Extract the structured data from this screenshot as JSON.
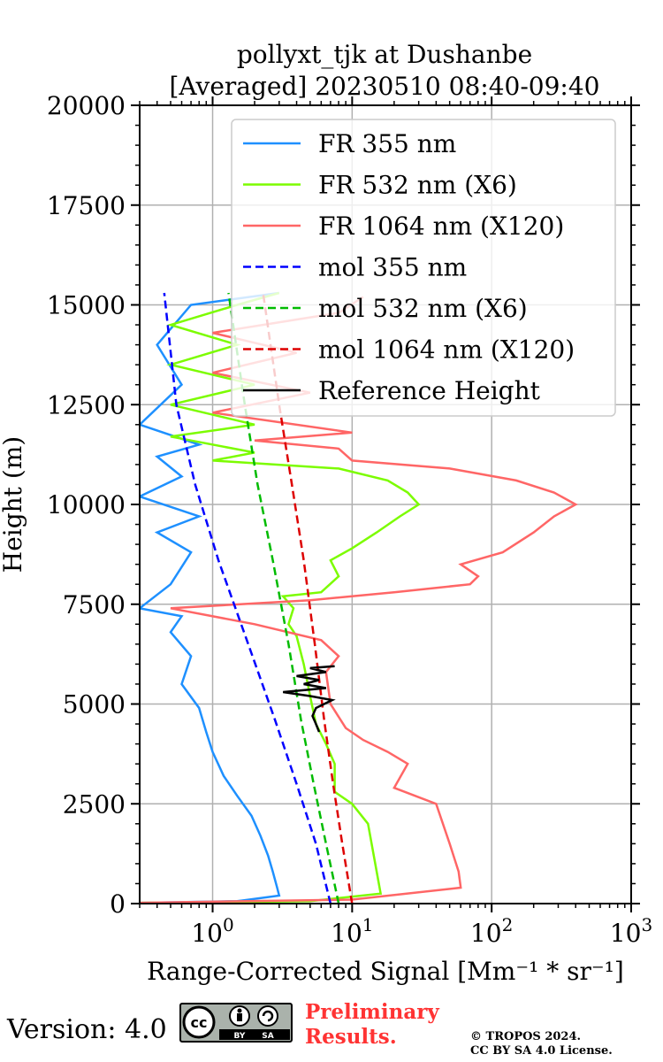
{
  "chart_data": {
    "type": "line",
    "title_line1": "pollyxt_tjk at Dushanbe",
    "title_line2": "[Averaged] 20230510 08:40-09:40",
    "xlabel": "Range-Corrected Signal",
    "xlabel_units": "[Mm⁻¹ * sr⁻¹]",
    "ylabel": "Height (m)",
    "xscale": "log",
    "xlim": [
      0.3,
      1000
    ],
    "ylim": [
      0,
      20000
    ],
    "grid": true,
    "legend_position": "top-right",
    "y_ticks": [
      "0",
      "2500",
      "5000",
      "7500",
      "10000",
      "12500",
      "15000",
      "17500",
      "20000"
    ],
    "x_ticks": [
      {
        "base": "10",
        "exp": "0",
        "value": 1
      },
      {
        "base": "10",
        "exp": "1",
        "value": 10
      },
      {
        "base": "10",
        "exp": "2",
        "value": 100
      },
      {
        "base": "10",
        "exp": "3",
        "value": 1000
      }
    ],
    "series": [
      {
        "name": "FR 355 nm",
        "color": "#1E90FF",
        "style": "solid",
        "points": [
          [
            0.3,
            20
          ],
          [
            1.5,
            60
          ],
          [
            3.0,
            200
          ],
          [
            2.9,
            400
          ],
          [
            2.7,
            800
          ],
          [
            2.5,
            1200
          ],
          [
            2.2,
            1700
          ],
          [
            1.9,
            2200
          ],
          [
            1.5,
            2700
          ],
          [
            1.2,
            3200
          ],
          [
            1.0,
            3800
          ],
          [
            0.9,
            4300
          ],
          [
            0.8,
            4900
          ],
          [
            0.6,
            5500
          ],
          [
            0.7,
            6200
          ],
          [
            0.5,
            6800
          ],
          [
            0.6,
            7200
          ],
          [
            0.3,
            7400
          ],
          [
            0.5,
            8000
          ],
          [
            0.7,
            8800
          ],
          [
            0.4,
            9300
          ],
          [
            0.8,
            9700
          ],
          [
            0.3,
            10200
          ],
          [
            0.6,
            10700
          ],
          [
            0.4,
            11200
          ],
          [
            0.8,
            11500
          ],
          [
            0.3,
            12000
          ],
          [
            0.6,
            13000
          ],
          [
            0.4,
            14000
          ],
          [
            0.7,
            15000
          ],
          [
            3.0,
            15300
          ]
        ]
      },
      {
        "name": "FR 532 nm (X6)",
        "color": "#7CFC00",
        "style": "solid",
        "points": [
          [
            0.3,
            20
          ],
          [
            5,
            60
          ],
          [
            16,
            250
          ],
          [
            15,
            800
          ],
          [
            13,
            2000
          ],
          [
            10,
            2500
          ],
          [
            7.5,
            2800
          ],
          [
            7.5,
            3500
          ],
          [
            6.5,
            4000
          ],
          [
            5.5,
            4500
          ],
          [
            5,
            5200
          ],
          [
            4.5,
            6000
          ],
          [
            4.0,
            6700
          ],
          [
            3.5,
            7000
          ],
          [
            3.8,
            7400
          ],
          [
            3.2,
            7700
          ],
          [
            6,
            7800
          ],
          [
            8,
            8200
          ],
          [
            7,
            8600
          ],
          [
            10,
            8900
          ],
          [
            15,
            9300
          ],
          [
            22,
            9700
          ],
          [
            30,
            10000
          ],
          [
            25,
            10300
          ],
          [
            18,
            10600
          ],
          [
            8,
            10900
          ],
          [
            1,
            11100
          ],
          [
            2,
            11300
          ],
          [
            0.5,
            11700
          ],
          [
            2,
            12000
          ],
          [
            0.5,
            12500
          ],
          [
            2,
            13000
          ],
          [
            0.5,
            13500
          ],
          [
            1.5,
            14000
          ],
          [
            0.5,
            14500
          ],
          [
            1.5,
            15000
          ],
          [
            3,
            15300
          ]
        ]
      },
      {
        "name": "FR 1064 nm (X120)",
        "color": "#FF6666",
        "style": "solid",
        "points": [
          [
            0.3,
            20
          ],
          [
            10,
            100
          ],
          [
            60,
            400
          ],
          [
            58,
            800
          ],
          [
            50,
            1500
          ],
          [
            40,
            2500
          ],
          [
            20,
            2900
          ],
          [
            25,
            3500
          ],
          [
            18,
            3800
          ],
          [
            12,
            4100
          ],
          [
            9,
            4400
          ],
          [
            7,
            5000
          ],
          [
            6.5,
            5800
          ],
          [
            8,
            6200
          ],
          [
            6,
            6600
          ],
          [
            2,
            7000
          ],
          [
            0.5,
            7400
          ],
          [
            5,
            7600
          ],
          [
            20,
            7800
          ],
          [
            70,
            8000
          ],
          [
            80,
            8200
          ],
          [
            60,
            8500
          ],
          [
            120,
            8800
          ],
          [
            200,
            9300
          ],
          [
            280,
            9700
          ],
          [
            400,
            10000
          ],
          [
            280,
            10300
          ],
          [
            150,
            10600
          ],
          [
            50,
            10900
          ],
          [
            10,
            11100
          ],
          [
            8,
            11400
          ],
          [
            2,
            11600
          ],
          [
            10,
            11800
          ],
          [
            1,
            12300
          ],
          [
            5,
            12800
          ],
          [
            1,
            13300
          ],
          [
            4,
            13800
          ],
          [
            1,
            14300
          ],
          [
            8,
            14800
          ],
          [
            12,
            15200
          ]
        ]
      },
      {
        "name": "mol 355 nm",
        "color": "#0000FF",
        "style": "dashed",
        "points": [
          [
            7.0,
            0
          ],
          [
            5.5,
            1500
          ],
          [
            4.0,
            3000
          ],
          [
            2.8,
            4600
          ],
          [
            1.8,
            6500
          ],
          [
            1.1,
            8600
          ],
          [
            0.75,
            10500
          ],
          [
            0.55,
            12500
          ],
          [
            0.45,
            15300
          ]
        ]
      },
      {
        "name": "mol 532 nm (X6)",
        "color": "#00BB00",
        "style": "dashed",
        "points": [
          [
            8.0,
            0
          ],
          [
            6.5,
            1500
          ],
          [
            5.3,
            3000
          ],
          [
            4.3,
            4600
          ],
          [
            3.5,
            6500
          ],
          [
            2.7,
            8600
          ],
          [
            2.1,
            10500
          ],
          [
            1.7,
            12500
          ],
          [
            1.3,
            15300
          ]
        ]
      },
      {
        "name": "mol 1064 nm (X120)",
        "color": "#DD0000",
        "style": "dashed",
        "points": [
          [
            10.0,
            0
          ],
          [
            8.5,
            1500
          ],
          [
            7.3,
            3000
          ],
          [
            6.3,
            4600
          ],
          [
            5.4,
            6500
          ],
          [
            4.5,
            8600
          ],
          [
            3.7,
            10500
          ],
          [
            3.0,
            12500
          ],
          [
            2.3,
            15300
          ]
        ]
      },
      {
        "name": "Reference Height",
        "color": "#000000",
        "style": "solid",
        "points": [
          [
            5.8,
            4300
          ],
          [
            5.5,
            4500
          ],
          [
            5.2,
            4700
          ],
          [
            5.5,
            4900
          ],
          [
            7.2,
            5100
          ],
          [
            5.0,
            5200
          ],
          [
            3.2,
            5300
          ],
          [
            6.5,
            5400
          ],
          [
            4.5,
            5500
          ],
          [
            5.8,
            5600
          ],
          [
            4.0,
            5700
          ],
          [
            6.5,
            5800
          ],
          [
            5.0,
            5900
          ],
          [
            7.5,
            5950
          ]
        ]
      }
    ]
  },
  "footer": {
    "version": "Version: 4.0",
    "cc_label": "cc",
    "cc_by": "BY",
    "cc_sa": "SA",
    "preliminary_line1": "Preliminary",
    "preliminary_line2": "Results.",
    "copyright_line1": "© TROPOS 2024.",
    "copyright_line2": "CC BY SA 4.0 License."
  }
}
